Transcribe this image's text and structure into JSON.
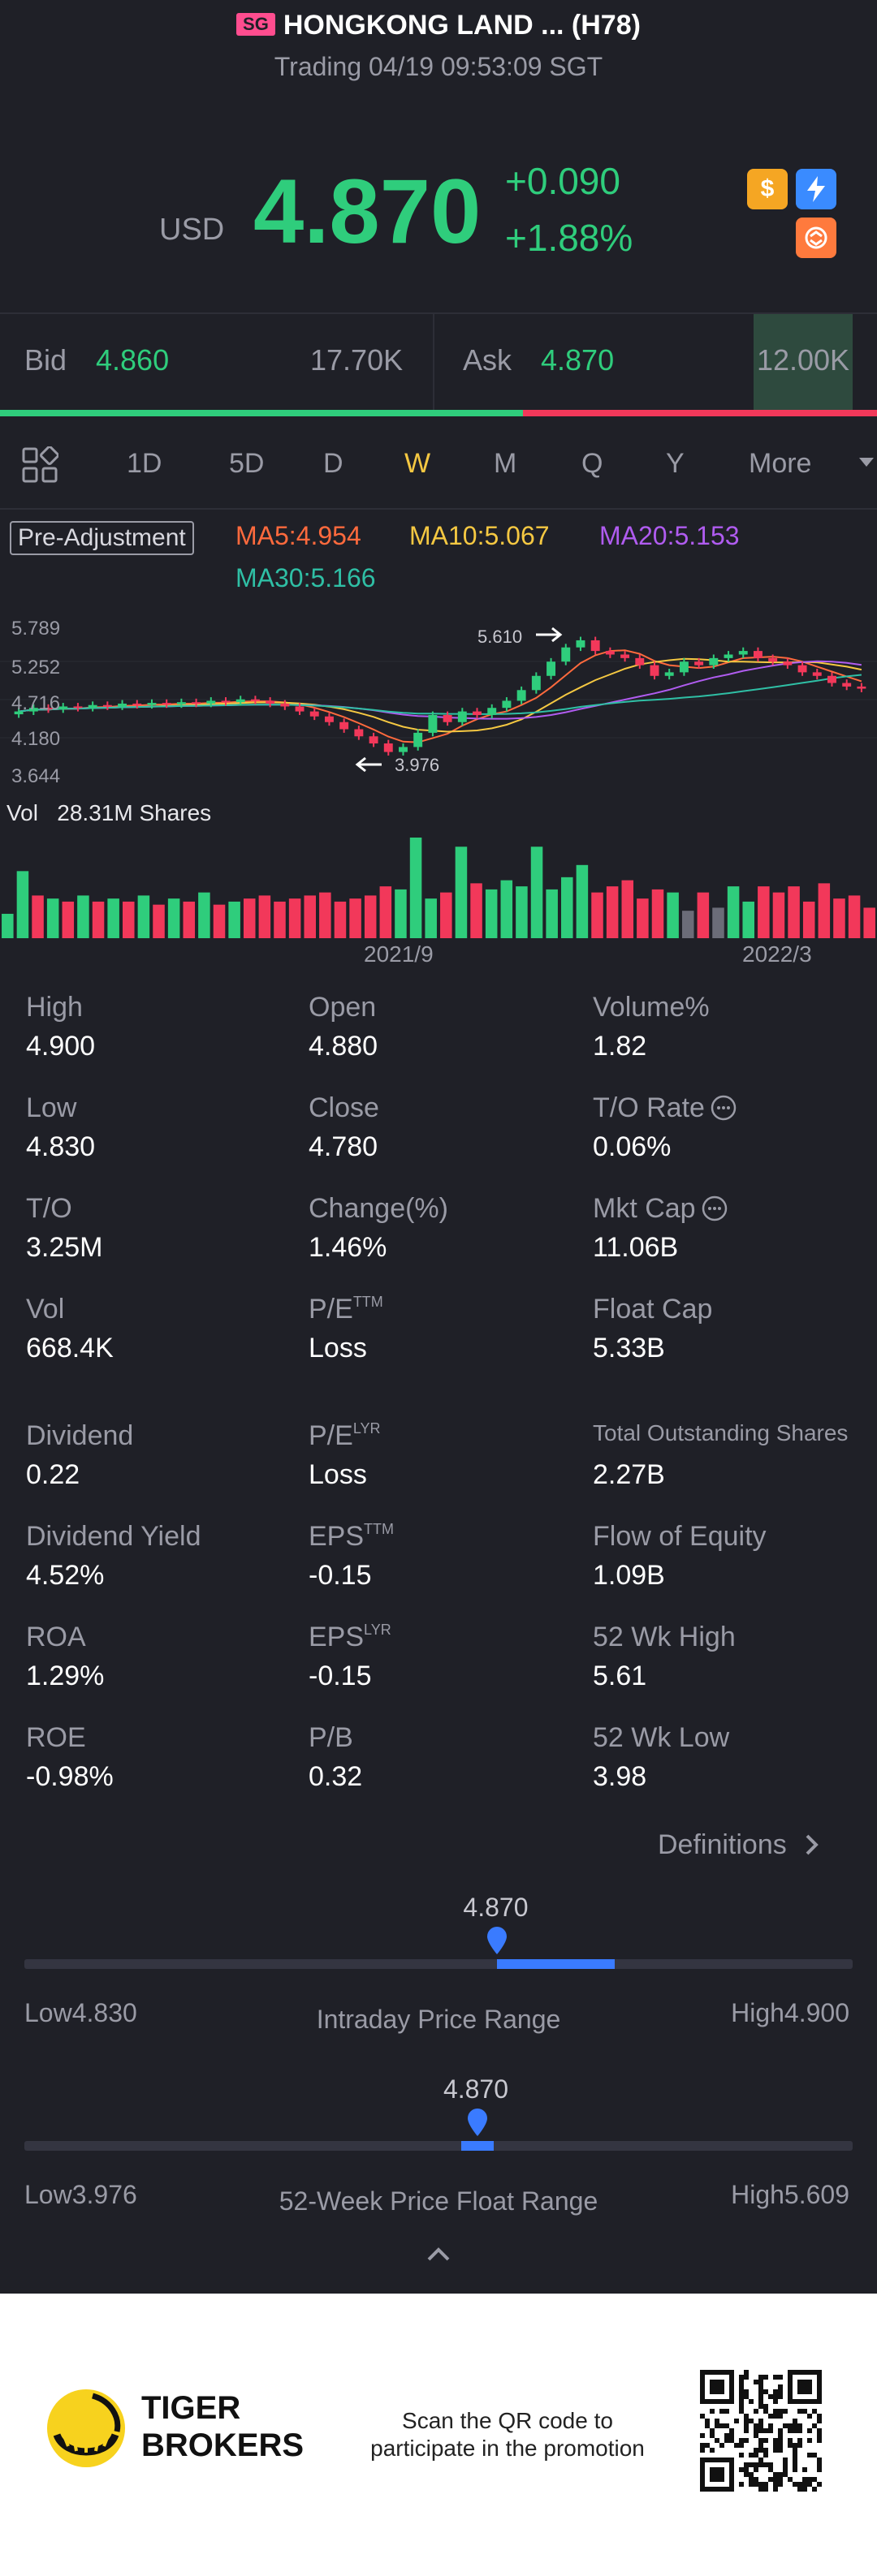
{
  "header": {
    "exchange_badge": "SG",
    "title": "HONGKONG LAND ... (H78)",
    "subtitle": "Trading 04/19 09:53:09 SGT"
  },
  "quote": {
    "currency": "USD",
    "price": "4.870",
    "change": "+0.090",
    "change_percent": "+1.88%",
    "badges": [
      "dollar-icon",
      "flash-icon",
      "exchange-icon"
    ]
  },
  "bid_ask": {
    "bid_label": "Bid",
    "bid_price": "4.860",
    "bid_qty": "17.70K",
    "ask_label": "Ask",
    "ask_price": "4.870",
    "ask_qty": "12.00K",
    "bid_ratio": 0.596
  },
  "tabs": [
    "1D",
    "5D",
    "D",
    "W",
    "M",
    "Q",
    "Y",
    "More"
  ],
  "active_tab": "W",
  "chart": {
    "pre_adjustment": "Pre-Adjustment",
    "ma5": "MA5:4.954",
    "ma10": "MA10:5.067",
    "ma20": "MA20:5.153",
    "ma30": "MA30:5.166",
    "y_labels": [
      "5.789",
      "5.252",
      "4.716",
      "4.180",
      "3.644"
    ],
    "high_marker": "5.610",
    "low_marker": "3.976",
    "vol_label": "Vol",
    "vol_value": "28.31M Shares",
    "x_labels": [
      "2021/9",
      "2022/3"
    ],
    "colors": {
      "ma5": "#ff6a3d",
      "ma10": "#f5c842",
      "ma20": "#b05cf0",
      "ma30": "#2fbfa5",
      "up": "#2fcd7c",
      "down": "#f2385a"
    }
  },
  "chart_data": {
    "type": "candlestick",
    "title": "HONGKONG LAND (H78) weekly",
    "ylim": [
      3.644,
      5.789
    ],
    "xlabel": "",
    "ylabel": "",
    "x_ticks": [
      "2021/9",
      "2022/3"
    ],
    "closes": [
      4.55,
      4.6,
      4.58,
      4.62,
      4.6,
      4.64,
      4.62,
      4.66,
      4.64,
      4.67,
      4.65,
      4.68,
      4.66,
      4.7,
      4.68,
      4.72,
      4.7,
      4.66,
      4.62,
      4.55,
      4.48,
      4.4,
      4.3,
      4.2,
      4.1,
      3.98,
      4.05,
      4.25,
      4.5,
      4.4,
      4.55,
      4.5,
      4.6,
      4.7,
      4.85,
      5.05,
      5.25,
      5.45,
      5.55,
      5.4,
      5.35,
      5.3,
      5.2,
      5.05,
      5.1,
      5.25,
      5.2,
      5.3,
      5.35,
      5.4,
      5.3,
      5.25,
      5.2,
      5.1,
      5.05,
      4.95,
      4.9,
      4.87
    ],
    "volume": {
      "label": "Vol 28.31M Shares",
      "values": [
        8,
        22,
        14,
        13,
        12,
        14,
        12,
        13,
        12,
        14,
        11,
        13,
        12,
        15,
        11,
        12,
        13,
        14,
        12,
        13,
        14,
        15,
        12,
        13,
        14,
        17,
        16,
        33,
        13,
        15,
        30,
        18,
        16,
        19,
        17,
        30,
        16,
        20,
        24,
        15,
        17,
        19,
        13,
        16,
        15,
        9,
        15,
        10,
        17,
        12,
        17,
        15,
        17,
        12,
        18,
        13,
        14,
        10
      ]
    }
  },
  "stats": [
    [
      {
        "label": "High",
        "value": "4.900"
      },
      {
        "label": "Open",
        "value": "4.880"
      },
      {
        "label": "Volume%",
        "value": "1.82"
      }
    ],
    [
      {
        "label": "Low",
        "value": "4.830"
      },
      {
        "label": "Close",
        "value": "4.780"
      },
      {
        "label": "T/O Rate",
        "value": "0.06%"
      }
    ],
    [
      {
        "label": "T/O",
        "value": "3.25M"
      },
      {
        "label": "Change(%)",
        "value": "1.46%"
      },
      {
        "label": "Mkt Cap",
        "value": "11.06B"
      }
    ],
    [
      {
        "label": "Vol",
        "value": "668.4K"
      },
      {
        "label": "P/E",
        "sup": "TTM",
        "value": "Loss"
      },
      {
        "label": "Float Cap",
        "value": "5.33B"
      }
    ],
    [
      {
        "label": "Dividend",
        "value": "0.22"
      },
      {
        "label": "P/E",
        "sup": "LYR",
        "value": "Loss"
      },
      {
        "label": "Total Outstanding Shares",
        "value": "2.27B"
      }
    ],
    [
      {
        "label": "Dividend Yield",
        "value": "4.52%"
      },
      {
        "label": "EPS",
        "sup": "TTM",
        "value": "-0.15"
      },
      {
        "label": "Flow of Equity",
        "value": "1.09B"
      }
    ],
    [
      {
        "label": "ROA",
        "value": "1.29%"
      },
      {
        "label": "EPS",
        "sup": "LYR",
        "value": "-0.15"
      },
      {
        "label": "52 Wk High",
        "value": "5.61"
      }
    ],
    [
      {
        "label": "ROE",
        "value": "-0.98%"
      },
      {
        "label": "P/B",
        "value": "0.32"
      },
      {
        "label": "52 Wk Low",
        "value": "3.98"
      }
    ]
  ],
  "definitions_link": "Definitions",
  "intraday_range": {
    "current": "4.870",
    "low_label": "Low",
    "low_value": "4.830",
    "high_label": "High",
    "high_value": "4.900",
    "title": "Intraday Price Range",
    "current_pos": 0.571
  },
  "week52_range": {
    "current": "4.870",
    "low_label": "Low",
    "low_value": "3.976",
    "high_label": "High",
    "high_value": "5.609",
    "title": "52-Week Price Float Range",
    "current_pos": 0.547
  },
  "footer": {
    "brand_line1": "TIGER",
    "brand_line2": "BROKERS",
    "promo_line1": "Scan the QR code to",
    "promo_line2": "participate in the promotion"
  }
}
